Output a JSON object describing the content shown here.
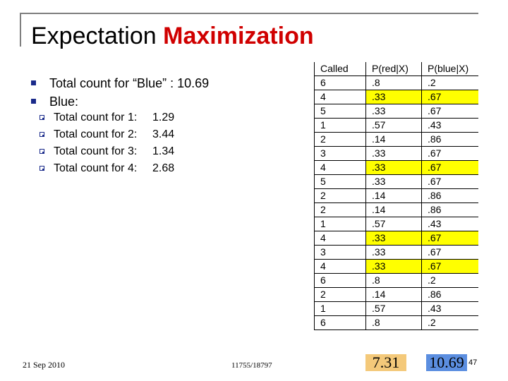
{
  "slide": {
    "title_plain": "Expectation ",
    "title_accent": "Maximization",
    "bullets": [
      "Total count for “Blue” : 10.69",
      "Blue:"
    ],
    "sub_bullets": [
      {
        "label": "Total count for 1:",
        "value": "1.29"
      },
      {
        "label": "Total count for 2:",
        "value": "3.44"
      },
      {
        "label": "Total count for 3:",
        "value": "1.34"
      },
      {
        "label": "Total count for 4:",
        "value": "2.68"
      }
    ]
  },
  "table": {
    "headers": [
      "Called",
      "P(red|X)",
      "P(blue|X)"
    ],
    "rows": [
      {
        "called": "6",
        "red": ".8",
        "blue": ".2",
        "highlight": false
      },
      {
        "called": "4",
        "red": ".33",
        "blue": ".67",
        "highlight": true
      },
      {
        "called": "5",
        "red": ".33",
        "blue": ".67",
        "highlight": false
      },
      {
        "called": "1",
        "red": ".57",
        "blue": ".43",
        "highlight": false
      },
      {
        "called": "2",
        "red": ".14",
        "blue": ".86",
        "highlight": false
      },
      {
        "called": "3",
        "red": ".33",
        "blue": ".67",
        "highlight": false
      },
      {
        "called": "4",
        "red": ".33",
        "blue": ".67",
        "highlight": true
      },
      {
        "called": "5",
        "red": ".33",
        "blue": ".67",
        "highlight": false
      },
      {
        "called": "2",
        "red": ".14",
        "blue": ".86",
        "highlight": false
      },
      {
        "called": "2",
        "red": ".14",
        "blue": ".86",
        "highlight": false
      },
      {
        "called": "1",
        "red": ".57",
        "blue": ".43",
        "highlight": false
      },
      {
        "called": "4",
        "red": ".33",
        "blue": ".67",
        "highlight": true
      },
      {
        "called": "3",
        "red": ".33",
        "blue": ".67",
        "highlight": false
      },
      {
        "called": "4",
        "red": ".33",
        "blue": ".67",
        "highlight": true
      },
      {
        "called": "6",
        "red": ".8",
        "blue": ".2",
        "highlight": false
      },
      {
        "called": "2",
        "red": ".14",
        "blue": ".86",
        "highlight": false
      },
      {
        "called": "1",
        "red": ".57",
        "blue": ".43",
        "highlight": false
      },
      {
        "called": "6",
        "red": ".8",
        "blue": ".2",
        "highlight": false
      }
    ],
    "sum_red": "7.31",
    "sum_blue": "10.69",
    "highlight_color": "#ffff00",
    "sum_red_color": "#f4c97a",
    "sum_blue_color": "#5b8ee0"
  },
  "footer": {
    "date": "21 Sep 2010",
    "course": "11755/18797",
    "page": "47"
  },
  "colors": {
    "accent": "#d00000",
    "bullet": "#1a2a8a"
  }
}
